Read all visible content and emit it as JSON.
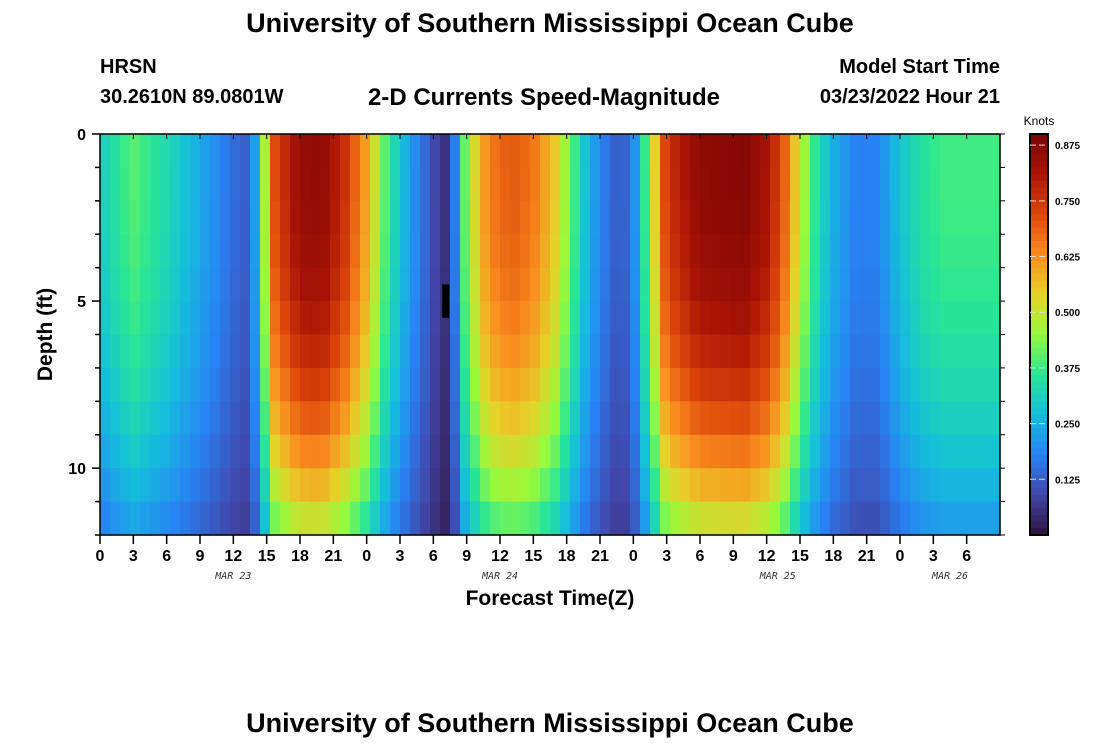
{
  "header": {
    "title": "University of Southern Mississippi Ocean Cube",
    "station": "HRSN",
    "coords": "30.2610N  89.0801W",
    "subtitle": "2-D Currents Speed-Magnitude",
    "model_start_label": "Model Start Time",
    "model_start_value": "03/23/2022 Hour 21"
  },
  "footer": {
    "title": "University of Southern Mississippi Ocean Cube"
  },
  "chart_data": {
    "type": "heatmap",
    "title": "2-D Currents Speed-Magnitude",
    "xlabel": "Forecast Time(Z)",
    "ylabel": "Depth (ft)",
    "x_range_hours": [
      0,
      81
    ],
    "y_range_ft": [
      0,
      12
    ],
    "y_reversed": true,
    "x_ticks": [
      {
        "h": 0,
        "label": "0"
      },
      {
        "h": 3,
        "label": "3"
      },
      {
        "h": 6,
        "label": "6"
      },
      {
        "h": 9,
        "label": "9"
      },
      {
        "h": 12,
        "label": "12"
      },
      {
        "h": 15,
        "label": "15"
      },
      {
        "h": 18,
        "label": "18"
      },
      {
        "h": 21,
        "label": "21"
      },
      {
        "h": 24,
        "label": "0"
      },
      {
        "h": 27,
        "label": "3"
      },
      {
        "h": 30,
        "label": "6"
      },
      {
        "h": 33,
        "label": "9"
      },
      {
        "h": 36,
        "label": "12"
      },
      {
        "h": 39,
        "label": "15"
      },
      {
        "h": 42,
        "label": "18"
      },
      {
        "h": 45,
        "label": "21"
      },
      {
        "h": 48,
        "label": "0"
      },
      {
        "h": 51,
        "label": "3"
      },
      {
        "h": 54,
        "label": "6"
      },
      {
        "h": 57,
        "label": "9"
      },
      {
        "h": 60,
        "label": "12"
      },
      {
        "h": 63,
        "label": "15"
      },
      {
        "h": 66,
        "label": "18"
      },
      {
        "h": 69,
        "label": "21"
      },
      {
        "h": 72,
        "label": "0"
      },
      {
        "h": 75,
        "label": "3"
      },
      {
        "h": 78,
        "label": "6"
      }
    ],
    "date_labels": [
      {
        "h": 12,
        "label": "MAR 23"
      },
      {
        "h": 36,
        "label": "MAR 24"
      },
      {
        "h": 61,
        "label": "MAR 25"
      },
      {
        "h": 76.5,
        "label": "MAR 26"
      }
    ],
    "y_ticks": [
      {
        "ft": 0,
        "label": "0"
      },
      {
        "ft": 5,
        "label": "5"
      },
      {
        "ft": 10,
        "label": "10"
      }
    ],
    "colorbar": {
      "label": "Knots",
      "min": 0,
      "max": 0.9,
      "ticks": [
        0.125,
        0.25,
        0.375,
        0.5,
        0.625,
        0.75,
        0.875
      ],
      "tick_labels": [
        "0.125",
        "0.250",
        "0.375",
        "0.500",
        "0.625",
        "0.750",
        "0.875"
      ]
    },
    "speed_profile_knots": [
      [
        0,
        0.3
      ],
      [
        3,
        0.4
      ],
      [
        6,
        0.33
      ],
      [
        9,
        0.24
      ],
      [
        12,
        0.15
      ],
      [
        13.5,
        0.12
      ],
      [
        14.5,
        0.35
      ],
      [
        15.5,
        0.7
      ],
      [
        18,
        0.85
      ],
      [
        20,
        0.86
      ],
      [
        22,
        0.76
      ],
      [
        24,
        0.6
      ],
      [
        26,
        0.36
      ],
      [
        28,
        0.22
      ],
      [
        30,
        0.1
      ],
      [
        31,
        0.05
      ],
      [
        32,
        0.18
      ],
      [
        33,
        0.45
      ],
      [
        35,
        0.65
      ],
      [
        37,
        0.7
      ],
      [
        39,
        0.66
      ],
      [
        41,
        0.55
      ],
      [
        42.5,
        0.4
      ],
      [
        44,
        0.25
      ],
      [
        46,
        0.14
      ],
      [
        47,
        0.12
      ],
      [
        48,
        0.18
      ],
      [
        49.5,
        0.45
      ],
      [
        51,
        0.75
      ],
      [
        54,
        0.86
      ],
      [
        58,
        0.88
      ],
      [
        60,
        0.82
      ],
      [
        61.5,
        0.7
      ],
      [
        63,
        0.5
      ],
      [
        64.5,
        0.35
      ],
      [
        66,
        0.25
      ],
      [
        68,
        0.18
      ],
      [
        70,
        0.18
      ],
      [
        72,
        0.28
      ],
      [
        74,
        0.35
      ],
      [
        76,
        0.38
      ],
      [
        78,
        0.38
      ]
    ],
    "depth_notes": "Speed decreases toward the bottom (12 ft); peaks narrow with depth"
  }
}
